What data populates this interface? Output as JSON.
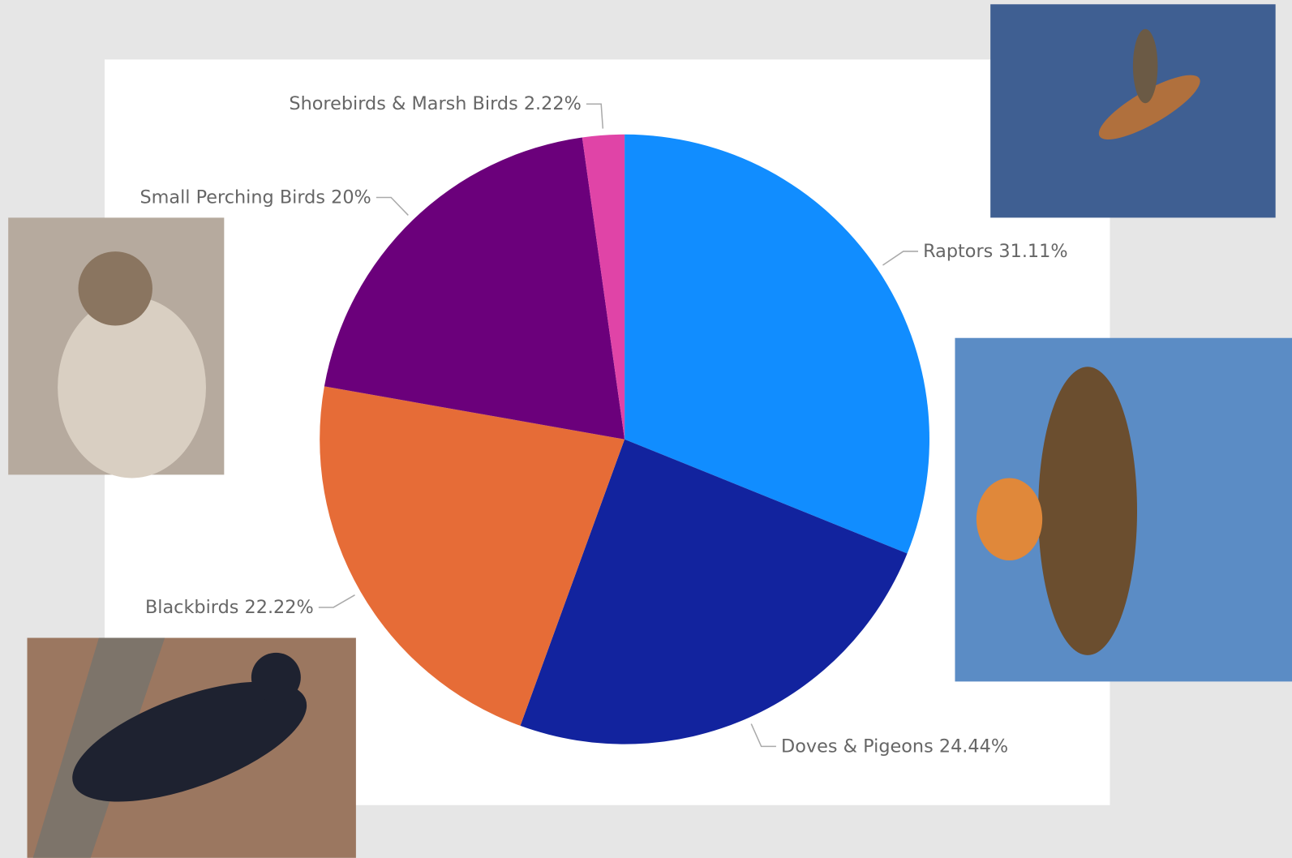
{
  "chart_data": {
    "type": "pie",
    "categories": [
      "Raptors",
      "Doves & Pigeons",
      "Blackbirds",
      "Small Perching Birds",
      "Shorebirds & Marsh Birds"
    ],
    "values": [
      31.11,
      24.44,
      22.22,
      20,
      2.22
    ],
    "value_labels": [
      "31.11%",
      "24.44%",
      "22.22%",
      "20%",
      "2.22%"
    ],
    "colors": [
      "#118dff",
      "#12239e",
      "#e66c37",
      "#6b007b",
      "#e044a7"
    ]
  }
}
